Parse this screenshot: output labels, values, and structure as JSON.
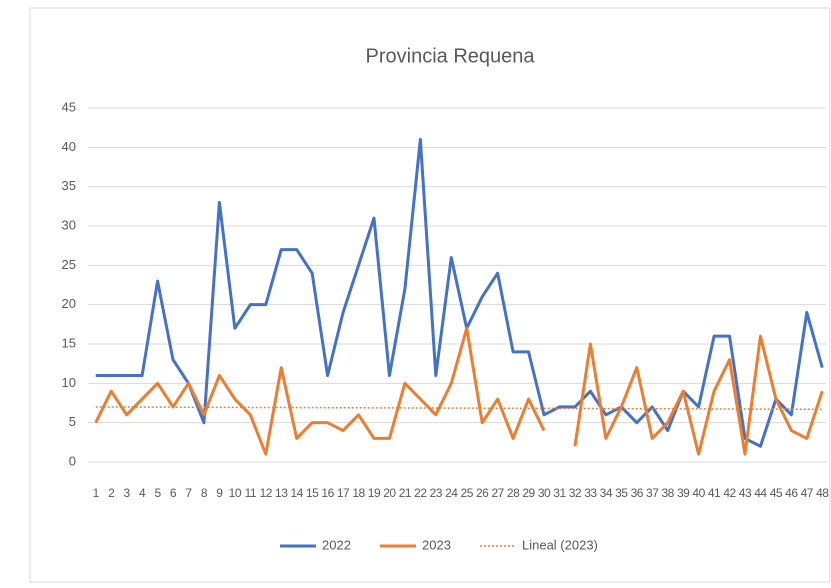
{
  "chart_data": {
    "type": "line",
    "title": "Provincia Requena",
    "categories": [
      "1",
      "2",
      "3",
      "4",
      "5",
      "6",
      "7",
      "8",
      "9",
      "10",
      "11",
      "12",
      "13",
      "14",
      "15",
      "16",
      "17",
      "18",
      "19",
      "20",
      "21",
      "22",
      "23",
      "24",
      "25",
      "26",
      "27",
      "28",
      "29",
      "30",
      "31",
      "32",
      "33",
      "34",
      "35",
      "36",
      "37",
      "38",
      "39",
      "40",
      "41",
      "42",
      "43",
      "44",
      "45",
      "46",
      "47",
      "48"
    ],
    "series": [
      {
        "name": "2022",
        "color": "#4472c4",
        "values": [
          11,
          11,
          11,
          11,
          23,
          13,
          10,
          5,
          33,
          17,
          20,
          20,
          27,
          27,
          24,
          11,
          19,
          25,
          31,
          11,
          22,
          41,
          11,
          26,
          17,
          21,
          24,
          14,
          14,
          6,
          7,
          7,
          9,
          6,
          7,
          5,
          7,
          4,
          9,
          7,
          16,
          16,
          3,
          2,
          8,
          6,
          19,
          12
        ]
      },
      {
        "name": "2023",
        "color": "#ed7d31",
        "values": [
          5,
          9,
          6,
          8,
          10,
          7,
          10,
          6,
          11,
          8,
          6,
          1,
          12,
          3,
          5,
          5,
          4,
          6,
          3,
          3,
          10,
          8,
          6,
          10,
          17,
          5,
          8,
          3,
          8,
          4,
          null,
          2,
          15,
          3,
          7,
          12,
          3,
          5,
          9,
          1,
          9,
          13,
          1,
          16,
          8,
          4,
          3,
          9
        ]
      }
    ],
    "trendline": {
      "name": "Lineal (2023)",
      "color": "#ed7d31",
      "start": 7,
      "end": 6.7
    },
    "ylim": [
      0,
      45
    ],
    "yticks": [
      0,
      5,
      10,
      15,
      20,
      25,
      30,
      35,
      40,
      45
    ],
    "grid": true,
    "legend": "bottom"
  }
}
